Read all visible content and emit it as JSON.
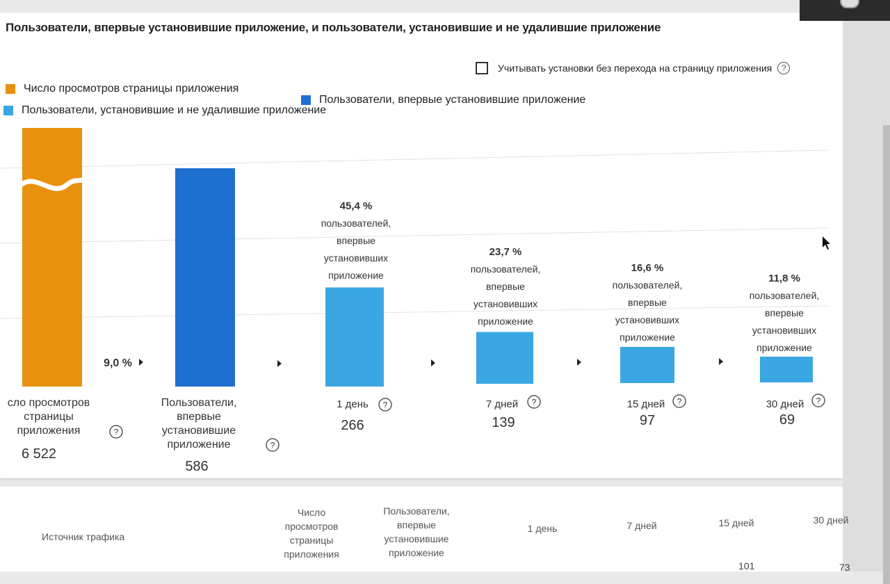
{
  "title": "Пользователи, впервые установившие приложение, и пользователи, установившие и не удалившие приложение",
  "option": {
    "checkbox_label": "Учитывать установки без перехода на страницу приложения",
    "checked": false
  },
  "help_icon_glyph": "?",
  "legend": [
    {
      "label": "Число просмотров страницы приложения",
      "color": "#e8910e"
    },
    {
      "label": "Пользователи, впервые установившие приложение",
      "color": "#1f6fd1"
    },
    {
      "label": "Пользователи, установившие и не удалившие приложение",
      "color": "#3aa6e2"
    }
  ],
  "chart_data": {
    "type": "bar",
    "title": "Пользователи, впервые установившие приложение, и пользователи, установившие и не удалившие приложение",
    "categories": [
      "сло просмотров страницы приложения",
      "Пользователи, впервые установившие приложение",
      "1 день",
      "7 дней",
      "15 дней",
      "30 дней"
    ],
    "values": [
      6522,
      586,
      266,
      139,
      97,
      69
    ],
    "value_labels": [
      "6 522",
      "586",
      "266",
      "139",
      "97",
      "69"
    ],
    "conversion_label": "9,0 %",
    "retention": [
      {
        "percent": "45,4 %",
        "caption": "пользователей, впервые установивших приложение"
      },
      {
        "percent": "23,7 %",
        "caption": "пользователей, впервые установивших приложение"
      },
      {
        "percent": "16,6 %",
        "caption": "пользователей, впервые установивших приложение"
      },
      {
        "percent": "11,8 %",
        "caption": "пользователей, впервые установивших приложение"
      }
    ],
    "first_bar_truncated": true,
    "grid": true,
    "legend_position": "top-left"
  },
  "table": {
    "headers": [
      "Источник трафика",
      "Число просмотров страницы приложения",
      "Пользователи, впервые установившие приложение",
      "1 день",
      "7 дней",
      "15 дней",
      "30 дней"
    ],
    "partial_values": [
      "101",
      "73"
    ]
  }
}
